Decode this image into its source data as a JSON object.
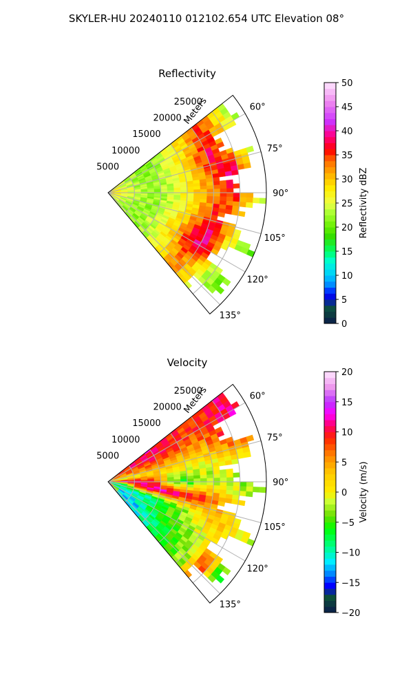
{
  "figure": {
    "title": "SKYLER-HU  20240110  012102.654 UTC Elevation 08°"
  },
  "chart_data": [
    {
      "type": "heatmap",
      "projection": "polar-sector",
      "title": "Reflectivity",
      "radial_label": "Meters",
      "radial_ticks": [
        5000,
        10000,
        15000,
        20000,
        25000
      ],
      "radial_tick_labels": [
        "5000",
        "10000",
        "15000",
        "20000",
        "25000"
      ],
      "rmax": 30000,
      "azimuth_range": [
        52,
        140
      ],
      "azimuth_ticks": [
        60,
        75,
        90,
        105,
        120,
        135
      ],
      "azimuth_tick_labels": [
        "60°",
        "75°",
        "90°",
        "105°",
        "120°",
        "135°"
      ],
      "grid": true,
      "colorbar": {
        "label": "Reflectivity dBZ",
        "min": 0,
        "max": 50,
        "ticks": [
          0,
          5,
          10,
          15,
          20,
          25,
          30,
          35,
          40,
          45,
          50
        ],
        "tick_labels": [
          "0",
          "5",
          "10",
          "15",
          "20",
          "25",
          "30",
          "35",
          "40",
          "45",
          "50"
        ],
        "stops": [
          {
            "v": 0,
            "c": "#0b1a4a"
          },
          {
            "v": 3,
            "c": "#0d4f3a"
          },
          {
            "v": 6,
            "c": "#0000ff"
          },
          {
            "v": 8,
            "c": "#0088ff"
          },
          {
            "v": 10,
            "c": "#00ccff"
          },
          {
            "v": 13,
            "c": "#00ffd0"
          },
          {
            "v": 15,
            "c": "#00ff66"
          },
          {
            "v": 18,
            "c": "#33dd00"
          },
          {
            "v": 20,
            "c": "#66ee00"
          },
          {
            "v": 23,
            "c": "#aaff33"
          },
          {
            "v": 25,
            "c": "#eeff44"
          },
          {
            "v": 28,
            "c": "#ffee00"
          },
          {
            "v": 31,
            "c": "#ffb000"
          },
          {
            "v": 34,
            "c": "#ff6600"
          },
          {
            "v": 36,
            "c": "#ff0000"
          },
          {
            "v": 39,
            "c": "#ff0088"
          },
          {
            "v": 42,
            "c": "#cc33ff"
          },
          {
            "v": 46,
            "c": "#ee88ee"
          },
          {
            "v": 50,
            "c": "#ffe6ff"
          }
        ]
      },
      "rays": [
        {
          "az": 60,
          "values": [
            28,
            24,
            22,
            21,
            24,
            27,
            31,
            36,
            30,
            24,
            21
          ]
        },
        {
          "az": 70,
          "values": [
            29,
            25,
            22,
            22,
            25,
            28,
            33,
            38,
            31,
            26,
            21
          ]
        },
        {
          "az": 80,
          "values": [
            30,
            26,
            23,
            22,
            24,
            27,
            31,
            35,
            40,
            30,
            22
          ]
        },
        {
          "az": 90,
          "values": [
            30,
            26,
            24,
            22,
            24,
            27,
            30,
            33,
            36,
            30,
            22
          ]
        },
        {
          "az": 100,
          "values": [
            29,
            25,
            23,
            22,
            24,
            27,
            31,
            36,
            33,
            26,
            21
          ]
        },
        {
          "az": 110,
          "values": [
            28,
            24,
            22,
            22,
            25,
            29,
            35,
            38,
            30,
            24,
            20
          ]
        },
        {
          "az": 120,
          "values": [
            27,
            24,
            22,
            23,
            26,
            31,
            37,
            40,
            28,
            22,
            20
          ]
        },
        {
          "az": 130,
          "values": [
            26,
            23,
            22,
            22,
            25,
            28,
            33,
            30,
            24,
            21,
            20
          ]
        }
      ]
    },
    {
      "type": "heatmap",
      "projection": "polar-sector",
      "title": "Velocity",
      "radial_label": "Meters",
      "radial_ticks": [
        5000,
        10000,
        15000,
        20000,
        25000
      ],
      "radial_tick_labels": [
        "5000",
        "10000",
        "15000",
        "20000",
        "25000"
      ],
      "rmax": 30000,
      "azimuth_range": [
        52,
        140
      ],
      "azimuth_ticks": [
        60,
        75,
        90,
        105,
        120,
        135
      ],
      "azimuth_tick_labels": [
        "60°",
        "75°",
        "90°",
        "105°",
        "120°",
        "135°"
      ],
      "grid": true,
      "colorbar": {
        "label": "Velocity (m/s)",
        "min": -20,
        "max": 20,
        "ticks": [
          -20,
          -15,
          -10,
          -5,
          0,
          5,
          10,
          15,
          20
        ],
        "tick_labels": [
          "−20",
          "−15",
          "−10",
          "−5",
          "0",
          "5",
          "10",
          "15",
          "20"
        ],
        "stops": [
          {
            "v": -20,
            "c": "#0b1a4a"
          },
          {
            "v": -17.5,
            "c": "#0d4f3a"
          },
          {
            "v": -15.5,
            "c": "#0000ff"
          },
          {
            "v": -13.5,
            "c": "#0088ff"
          },
          {
            "v": -11.5,
            "c": "#00eeff"
          },
          {
            "v": -9,
            "c": "#00ff88"
          },
          {
            "v": -6,
            "c": "#00ff00"
          },
          {
            "v": -4,
            "c": "#66dd00"
          },
          {
            "v": -1.5,
            "c": "#ccff33"
          },
          {
            "v": 0,
            "c": "#ffee00"
          },
          {
            "v": 3,
            "c": "#ffcc00"
          },
          {
            "v": 6,
            "c": "#ff8800"
          },
          {
            "v": 9,
            "c": "#ff2200"
          },
          {
            "v": 11,
            "c": "#ff0066"
          },
          {
            "v": 13,
            "c": "#ff00ff"
          },
          {
            "v": 15,
            "c": "#bb33ff"
          },
          {
            "v": 17.5,
            "c": "#ee99ee"
          },
          {
            "v": 20,
            "c": "#ffe6ff"
          }
        ]
      },
      "rays": [
        {
          "az": 60,
          "values": [
            6,
            8,
            10,
            11,
            10,
            9,
            8,
            9,
            10,
            11,
            10
          ]
        },
        {
          "az": 70,
          "values": [
            4,
            5,
            6,
            7,
            6,
            5,
            4,
            6,
            8,
            10,
            9
          ]
        },
        {
          "az": 80,
          "values": [
            0,
            -1,
            1,
            2,
            1,
            0,
            -1,
            0,
            1,
            -2,
            -3
          ]
        },
        {
          "az": 90,
          "values": [
            12,
            14,
            12,
            10,
            -4,
            -6,
            -3,
            -2,
            -3,
            -4,
            -5
          ]
        },
        {
          "az": 100,
          "values": [
            -12,
            -10,
            10,
            12,
            13,
            11,
            9,
            6,
            3,
            1,
            0
          ]
        },
        {
          "az": 110,
          "values": [
            -6,
            -8,
            -10,
            -9,
            -6,
            -3,
            0,
            3,
            2,
            0,
            -1
          ]
        },
        {
          "az": 120,
          "values": [
            -10,
            -12,
            -10,
            -8,
            -5,
            -4,
            -3,
            0,
            2,
            1,
            -2
          ]
        },
        {
          "az": 130,
          "values": [
            13,
            -11,
            -12,
            -10,
            -8,
            -6,
            -4,
            -2,
            10,
            -5,
            -8
          ]
        }
      ]
    }
  ]
}
